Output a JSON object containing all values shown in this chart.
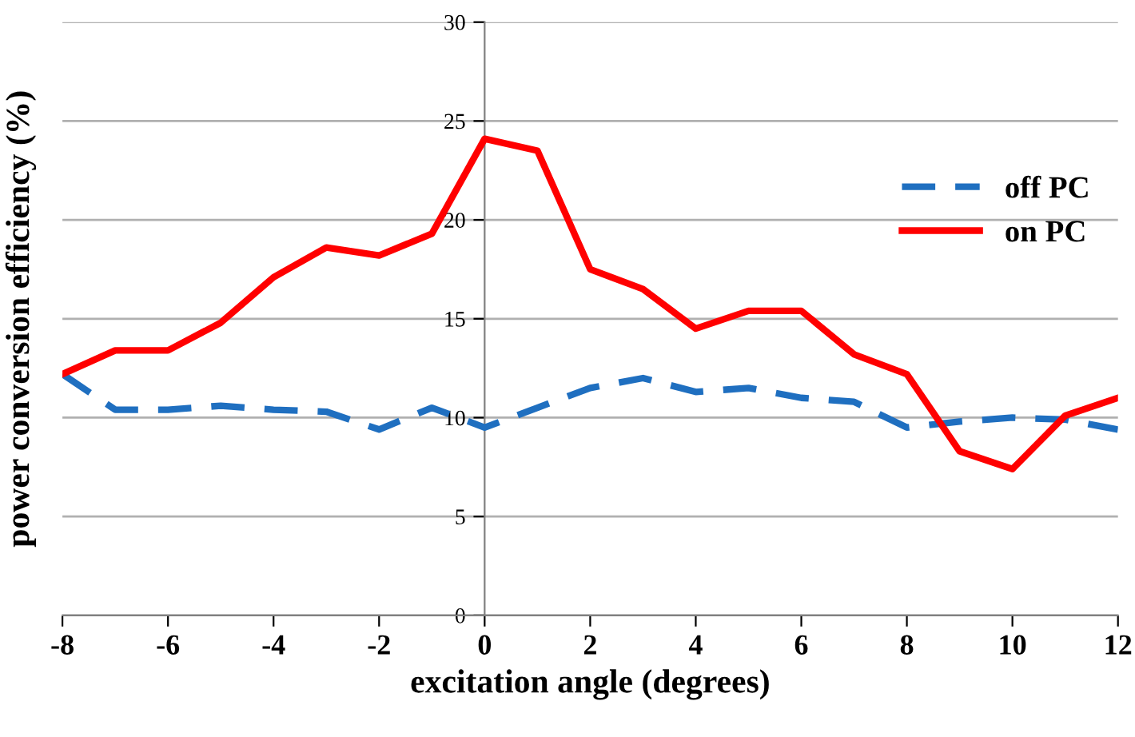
{
  "chart_data": {
    "type": "line",
    "xlabel": "excitation angle (degrees)",
    "ylabel": "power conversion efficiency (%)",
    "x": [
      -8,
      -7,
      -6,
      -5,
      -4,
      -3,
      -2,
      -1,
      0,
      1,
      2,
      3,
      4,
      5,
      6,
      7,
      8,
      9,
      10,
      11,
      12
    ],
    "series": [
      {
        "name": "off PC",
        "color": "#1f6fc0",
        "line_style": "dashed",
        "values": [
          12.2,
          10.4,
          10.4,
          10.6,
          10.4,
          10.3,
          9.4,
          10.5,
          9.5,
          10.5,
          11.5,
          12.0,
          11.3,
          11.5,
          11.0,
          10.8,
          9.5,
          9.8,
          10.0,
          9.9,
          9.4
        ]
      },
      {
        "name": "on PC",
        "color": "#ff0000",
        "line_style": "solid",
        "values": [
          12.2,
          13.4,
          13.4,
          14.8,
          17.1,
          18.6,
          18.2,
          19.3,
          24.1,
          23.5,
          17.5,
          16.5,
          14.5,
          15.4,
          15.4,
          13.2,
          12.2,
          8.3,
          7.4,
          10.1,
          11.0
        ]
      }
    ],
    "xlim": [
      -8,
      12
    ],
    "xticks": [
      -8,
      -6,
      -4,
      -2,
      0,
      2,
      4,
      6,
      8,
      10,
      12
    ],
    "ylim": [
      0,
      30
    ],
    "yticks": [
      0,
      5,
      10,
      15,
      20,
      25,
      30
    ],
    "grid": "y",
    "legend": "right"
  }
}
